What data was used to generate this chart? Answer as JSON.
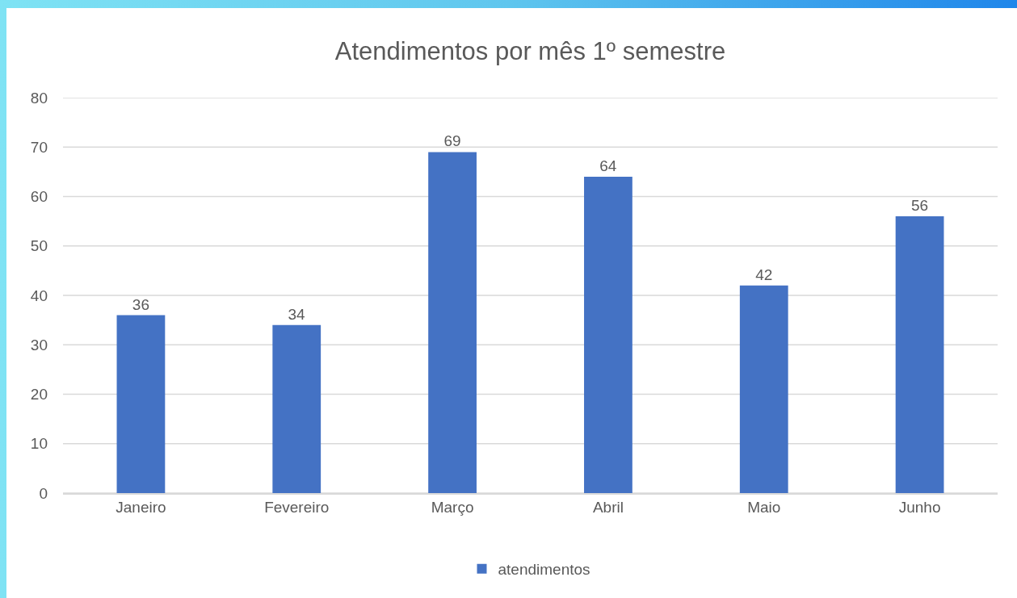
{
  "chart_data": {
    "type": "bar",
    "title": "Atendimentos por mês 1º semestre",
    "categories": [
      "Janeiro",
      "Fevereiro",
      "Março",
      "Abril",
      "Maio",
      "Junho"
    ],
    "series": [
      {
        "name": "atendimentos",
        "color": "#4472c4",
        "values": [
          36,
          34,
          69,
          64,
          42,
          56
        ]
      }
    ],
    "ylim": [
      0,
      80
    ],
    "yticks": [
      0,
      10,
      20,
      30,
      40,
      50,
      60,
      70,
      80
    ],
    "grid": "y",
    "legend": "bottom",
    "data_labels": true
  }
}
